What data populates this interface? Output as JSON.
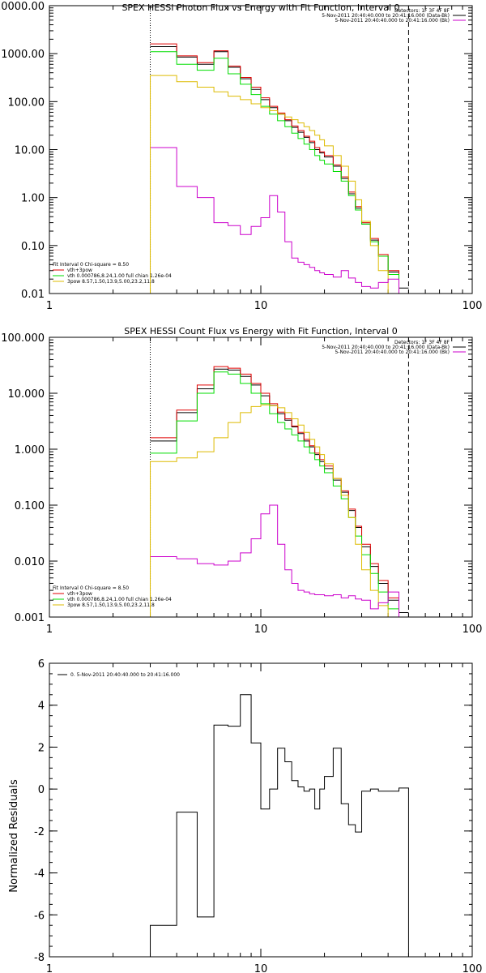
{
  "chart_data": [
    {
      "type": "line",
      "title": "SPEX HESSI Photon Flux vs Energy with Fit Function, Interval 0",
      "xscale": "log",
      "yscale": "log",
      "xlim": [
        1,
        100
      ],
      "ylim": [
        0.01,
        10000
      ],
      "x_ticks": [
        "1",
        "10",
        "100"
      ],
      "y_ticks": [
        "0.01",
        "0.10",
        "1.00",
        "10.00",
        "100.00",
        "1000.00",
        "10000.00"
      ],
      "y_tick_values": [
        0.01,
        0.1,
        1,
        10,
        100,
        1000,
        10000
      ],
      "legend_top": [
        "Detectors: 1F 3F 4F 8F",
        "5-Nov-2011 20:40:40.000 to 20:41:16.000 (Data-Bk)",
        "5-Nov-2011 20:40:40.000 to 20:41:16.000 (Bk)"
      ],
      "legend_top_colors": [
        "",
        "#000000",
        "#cc00cc"
      ],
      "legend_bottom": [
        "Fit Interval 0   Chi-square = 8.50",
        "vth+3pow",
        "vth 0.000786,8.24,1.00   full chian 1.26e-04",
        "3pow 8.57,1.50,13.9,5.00,23.2,11.8"
      ],
      "legend_bottom_colors": [
        "",
        "#e00000",
        "#00dd00",
        "#ddbb00"
      ],
      "vlines": [
        {
          "x": 3.0,
          "style": "dotted"
        },
        {
          "x": 50,
          "style": "dashed"
        }
      ],
      "edges": [
        3.0,
        3.5,
        4.0,
        4.5,
        5.0,
        6.0,
        7.0,
        8.0,
        9.0,
        10.0,
        11.0,
        12.0,
        13.0,
        14.0,
        15.0,
        16.0,
        17.0,
        18.0,
        19.0,
        20.0,
        22.0,
        24.0,
        26.0,
        28.0,
        30.0,
        33.0,
        36.0,
        40.0,
        45.0,
        50.0
      ],
      "series": [
        {
          "color": "#000000",
          "values": [
            1400,
            1400,
            850,
            850,
            600,
            1100,
            520,
            300,
            180,
            110,
            75,
            55,
            40,
            29,
            23,
            18,
            14,
            10,
            8.5,
            7,
            4.5,
            2.5,
            1.2,
            0.6,
            0.28,
            0.13,
            0.06,
            0.028,
            0.013
          ]
        },
        {
          "color": "#e00000",
          "values": [
            1600,
            1600,
            900,
            900,
            650,
            1150,
            550,
            320,
            200,
            120,
            80,
            58,
            42,
            31,
            25,
            19,
            15,
            11,
            9,
            7.5,
            4.8,
            2.7,
            1.3,
            0.65,
            0.3,
            0.14,
            0.065,
            0.03,
            0.01
          ]
        },
        {
          "color": "#00dd00",
          "values": [
            1100,
            1100,
            600,
            600,
            450,
            800,
            380,
            230,
            140,
            80,
            55,
            40,
            30,
            22,
            17,
            13,
            10,
            7.5,
            6,
            5,
            3.5,
            2.2,
            1.1,
            0.55,
            0.28,
            0.12,
            0.06,
            0.025,
            0.01
          ]
        },
        {
          "color": "#ddbb00",
          "values": [
            350,
            350,
            260,
            260,
            200,
            160,
            130,
            110,
            90,
            75,
            65,
            55,
            48,
            42,
            36,
            30,
            25,
            20,
            16,
            12,
            7.5,
            4.5,
            2.2,
            0.9,
            0.32,
            0.1,
            0.03,
            0.01,
            0.005
          ]
        },
        {
          "color": "#cc00cc",
          "values": [
            11,
            11,
            1.7,
            1.7,
            1.0,
            0.3,
            0.26,
            0.17,
            0.25,
            0.38,
            1.1,
            0.5,
            0.12,
            0.055,
            0.045,
            0.04,
            0.035,
            0.03,
            0.027,
            0.025,
            0.022,
            0.03,
            0.021,
            0.017,
            0.014,
            0.013,
            0.017,
            0.02,
            0.005
          ]
        }
      ]
    },
    {
      "type": "line",
      "title": "SPEX HESSI Count Flux vs Energy with Fit Function, Interval 0",
      "xscale": "log",
      "yscale": "log",
      "xlim": [
        1,
        100
      ],
      "ylim": [
        0.001,
        100
      ],
      "x_ticks": [
        "1",
        "10",
        "100"
      ],
      "y_ticks": [
        "0.001",
        "0.010",
        "0.100",
        "1.000",
        "10.000",
        "100.000"
      ],
      "y_tick_values": [
        0.001,
        0.01,
        0.1,
        1,
        10,
        100
      ],
      "legend_top": [
        "Detectors: 1F 3F 4F 8F",
        "5-Nov-2011 20:40:40.000 to 20:41:16.000 (Data-Bk)",
        "5-Nov-2011 20:40:40.000 to 20:41:16.000 (Bk)"
      ],
      "legend_top_colors": [
        "",
        "#000000",
        "#cc00cc"
      ],
      "legend_bottom": [
        "Fit Interval 0   Chi-square = 8.50",
        "vth+3pow",
        "vth 0.000786,8.24,1.00   full chian 1.26e-04",
        "3pow 8.57,1.50,13.9,5.00,23.2,11.8"
      ],
      "legend_bottom_colors": [
        "",
        "#e00000",
        "#00dd00",
        "#ddbb00"
      ],
      "vlines": [
        {
          "x": 3.0,
          "style": "dotted"
        },
        {
          "x": 50,
          "style": "dashed"
        }
      ],
      "edges": [
        3.0,
        3.5,
        4.0,
        4.5,
        5.0,
        6.0,
        7.0,
        8.0,
        9.0,
        10.0,
        11.0,
        12.0,
        13.0,
        14.0,
        15.0,
        16.0,
        17.0,
        18.0,
        19.0,
        20.0,
        22.0,
        24.0,
        26.0,
        28.0,
        30.0,
        33.0,
        36.0,
        40.0,
        45.0,
        50.0
      ],
      "series": [
        {
          "color": "#000000",
          "values": [
            1.4,
            1.4,
            4.5,
            4.5,
            12,
            27,
            26,
            20,
            14,
            9,
            6,
            4.3,
            3.3,
            2.5,
            1.9,
            1.4,
            1.1,
            0.8,
            0.6,
            0.45,
            0.28,
            0.17,
            0.08,
            0.04,
            0.018,
            0.008,
            0.004,
            0.002,
            0.0012
          ]
        },
        {
          "color": "#e00000",
          "values": [
            1.6,
            1.6,
            5,
            5,
            14,
            30,
            28,
            22,
            15,
            10,
            6.5,
            4.6,
            3.5,
            2.6,
            2.0,
            1.5,
            1.15,
            0.85,
            0.65,
            0.5,
            0.3,
            0.18,
            0.085,
            0.042,
            0.02,
            0.009,
            0.0045,
            0.0022,
            0.001
          ]
        },
        {
          "color": "#00dd00",
          "values": [
            0.85,
            0.85,
            3.2,
            3.2,
            10,
            24,
            22,
            15,
            10,
            6.5,
            4.3,
            3.0,
            2.3,
            1.8,
            1.4,
            1.1,
            0.85,
            0.65,
            0.5,
            0.38,
            0.22,
            0.13,
            0.06,
            0.028,
            0.013,
            0.006,
            0.0028,
            0.0014,
            0.0007
          ]
        },
        {
          "color": "#ddbb00",
          "values": [
            0.6,
            0.6,
            0.7,
            0.7,
            0.9,
            1.6,
            3.0,
            4.5,
            5.8,
            6.2,
            6.0,
            5.5,
            4.5,
            3.5,
            2.7,
            2.0,
            1.5,
            1.1,
            0.8,
            0.55,
            0.3,
            0.15,
            0.06,
            0.02,
            0.007,
            0.003,
            0.0016,
            0.001,
            0.0005
          ]
        },
        {
          "color": "#cc00cc",
          "values": [
            0.012,
            0.012,
            0.011,
            0.011,
            0.009,
            0.0085,
            0.01,
            0.014,
            0.025,
            0.07,
            0.1,
            0.02,
            0.007,
            0.004,
            0.003,
            0.0028,
            0.0026,
            0.0025,
            0.0025,
            0.0024,
            0.0025,
            0.0022,
            0.0024,
            0.0021,
            0.002,
            0.0014,
            0.0018,
            0.0028,
            0.0008
          ]
        }
      ]
    },
    {
      "type": "line",
      "title": "",
      "xscale": "log",
      "yscale": "linear",
      "xlim": [
        1,
        100
      ],
      "ylim": [
        -8,
        6
      ],
      "x_ticks": [
        "1",
        "10",
        "100"
      ],
      "y_ticks": [
        "-8",
        "-6",
        "-4",
        "-2",
        "0",
        "2",
        "4",
        "6"
      ],
      "y_tick_values": [
        -8,
        -6,
        -4,
        -2,
        0,
        2,
        4,
        6
      ],
      "ylabel": "Normalized Residuals",
      "legend_top": [
        "0.  5-Nov-2011 20:40:40.000 to 20:41:16.000"
      ],
      "legend_top_colors": [
        "#000000"
      ],
      "edges": [
        3.0,
        3.5,
        4.0,
        4.5,
        5.0,
        6.0,
        7.0,
        8.0,
        9.0,
        10.0,
        11.0,
        12.0,
        13.0,
        14.0,
        15.0,
        16.0,
        17.0,
        18.0,
        19.0,
        20.0,
        22.0,
        24.0,
        26.0,
        28.0,
        30.0,
        33.0,
        36.0,
        40.0,
        45.0,
        50.0
      ],
      "series": [
        {
          "color": "#000000",
          "values": [
            -6.5,
            -6.5,
            -1.1,
            -1.1,
            -6.1,
            3.05,
            3.0,
            4.5,
            2.2,
            -0.95,
            0.0,
            1.95,
            1.3,
            0.4,
            0.1,
            -0.1,
            0.0,
            -0.95,
            0.0,
            0.6,
            1.95,
            -0.7,
            -1.7,
            -2.05,
            -0.1,
            0.0,
            -0.1,
            -0.1,
            0.05
          ]
        }
      ]
    }
  ]
}
